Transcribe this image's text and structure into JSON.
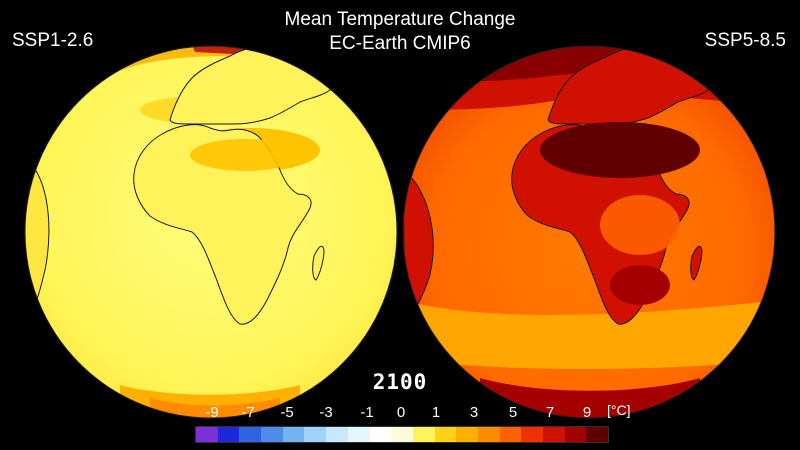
{
  "title": {
    "line1": "Mean Temperature Change",
    "line2": "EC-Earth CMIP6"
  },
  "scenarios": {
    "left": "SSP1-2.6",
    "right": "SSP5-8.5"
  },
  "year": "2100",
  "colorbar": {
    "unit": "[°C]",
    "tick_labels": [
      "-9",
      "-7",
      "-5",
      "-3",
      "-1",
      "0",
      "1",
      "3",
      "5",
      "7",
      "9"
    ],
    "colors": [
      "#7b2fd8",
      "#1f28d8",
      "#2f63e0",
      "#4d8de8",
      "#73b3f0",
      "#9fd2f6",
      "#c8e8fb",
      "#e6f6fe",
      "#ffffff",
      "#fffbd8",
      "#fff25a",
      "#ffd21a",
      "#ffb000",
      "#ff8c00",
      "#ff6000",
      "#f03000",
      "#d01000",
      "#a50000",
      "#600000"
    ]
  },
  "colors": {
    "background": "#000000",
    "land_outline": "#1a1a1a"
  }
}
